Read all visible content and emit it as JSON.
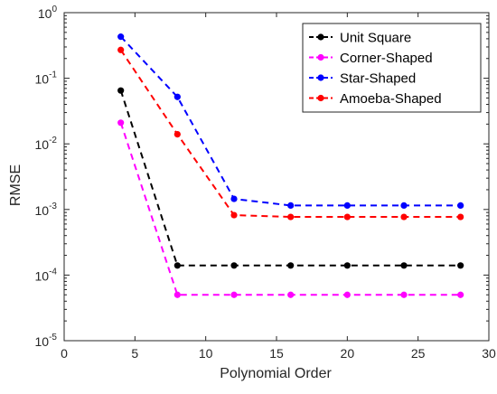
{
  "chart_data": {
    "type": "line",
    "title": "",
    "xlabel": "Polynomial Order",
    "ylabel": "RMSE",
    "xlim": [
      0,
      30
    ],
    "ylim": [
      1e-05,
      1
    ],
    "yscale": "log",
    "grid": false,
    "legend_position": "top-right",
    "x_ticks": [
      {
        "value": 0,
        "label": "0"
      },
      {
        "value": 5,
        "label": "5"
      },
      {
        "value": 10,
        "label": "10"
      },
      {
        "value": 15,
        "label": "15"
      },
      {
        "value": 20,
        "label": "20"
      },
      {
        "value": 25,
        "label": "25"
      },
      {
        "value": 30,
        "label": "30"
      }
    ],
    "y_ticks": [
      {
        "value": 1e-05,
        "base": "10",
        "exp": "-5"
      },
      {
        "value": 0.0001,
        "base": "10",
        "exp": "-4"
      },
      {
        "value": 0.001,
        "base": "10",
        "exp": "-3"
      },
      {
        "value": 0.01,
        "base": "10",
        "exp": "-2"
      },
      {
        "value": 0.1,
        "base": "10",
        "exp": "-1"
      },
      {
        "value": 1,
        "base": "10",
        "exp": "0"
      }
    ],
    "x": [
      4,
      8,
      12,
      16,
      20,
      24,
      28
    ],
    "series": [
      {
        "name": "Unit Square",
        "color": "#000000",
        "values": [
          0.065,
          0.00014,
          0.00014,
          0.00014,
          0.00014,
          0.00014,
          0.00014
        ]
      },
      {
        "name": "Corner-Shaped",
        "color": "#ff00ff",
        "values": [
          0.021,
          5e-05,
          5e-05,
          5e-05,
          5e-05,
          5e-05,
          5e-05
        ]
      },
      {
        "name": "Star-Shaped",
        "color": "#0000ff",
        "values": [
          0.43,
          0.052,
          0.00145,
          0.00115,
          0.00115,
          0.00115,
          0.00115
        ]
      },
      {
        "name": "Amoeba-Shaped",
        "color": "#ff0000",
        "values": [
          0.27,
          0.014,
          0.00082,
          0.00077,
          0.00077,
          0.00077,
          0.00077
        ]
      }
    ]
  }
}
